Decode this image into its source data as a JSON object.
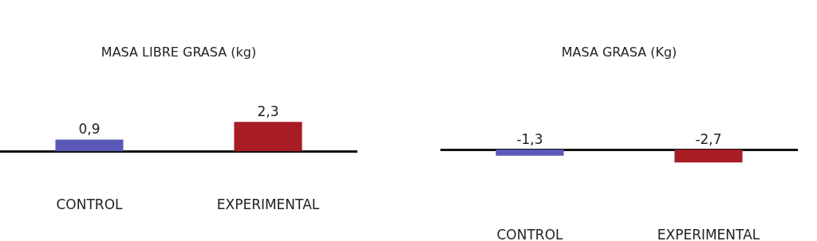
{
  "chart_data": [
    {
      "type": "bar",
      "title": "MASA LIBRE GRASA (kg)",
      "categories": [
        "CONTROL",
        "EXPERIMENTAL"
      ],
      "values": [
        0.9,
        2.3
      ],
      "colors": [
        "#5a59b8",
        "#a81c24"
      ],
      "value_labels": [
        "0,9",
        "2,3"
      ],
      "tick_labels": "x"
    },
    {
      "type": "bar",
      "title": "MASA GRASA (Kg)",
      "categories": [
        "CONTROL",
        "EXPERIMENTAL"
      ],
      "values": [
        -1.3,
        -2.7
      ],
      "colors": [
        "#5a59b8",
        "#a81c24"
      ],
      "value_labels": [
        "-1,3",
        "-2,7"
      ],
      "tick_labels": "x"
    }
  ]
}
